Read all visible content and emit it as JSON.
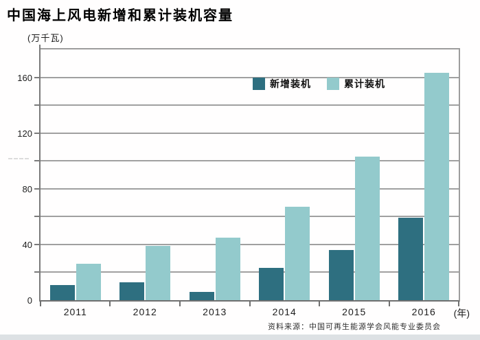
{
  "header": {
    "title": "中国海上风电新增和累计装机容量",
    "unit_label": "(万千瓦)"
  },
  "footer": {
    "source": "资料来源：中国可再生能源学会风能专业委员会"
  },
  "colors": {
    "new_series": "#2E6F80",
    "cumulative_series": "#93CACC",
    "gridline": "#a0a0a0",
    "frame": "#9c9c9c",
    "bottom_strip": "#dde1e4"
  },
  "legend": {
    "items": [
      {
        "label": "新增装机"
      },
      {
        "label": "累计装机"
      }
    ]
  },
  "chart_data": {
    "type": "bar",
    "title": "中国海上风电新增和累计装机容量",
    "ylabel": "万千瓦",
    "xlabel": "年",
    "x_suffix_label": "(年)",
    "categories": [
      "2011",
      "2012",
      "2013",
      "2014",
      "2015",
      "2016"
    ],
    "series": [
      {
        "name": "新增装机",
        "color": "#2E6F80",
        "values": [
          11,
          13,
          6,
          23,
          36,
          59
        ]
      },
      {
        "name": "累计装机",
        "color": "#93CACC",
        "values": [
          26,
          39,
          45,
          67,
          103,
          163
        ]
      }
    ],
    "ylim": [
      0,
      180
    ],
    "gridline_step": 20,
    "ytick_labels": [
      0,
      40,
      80,
      120,
      160
    ],
    "grid": true,
    "legend_position": "top-center-inside"
  }
}
